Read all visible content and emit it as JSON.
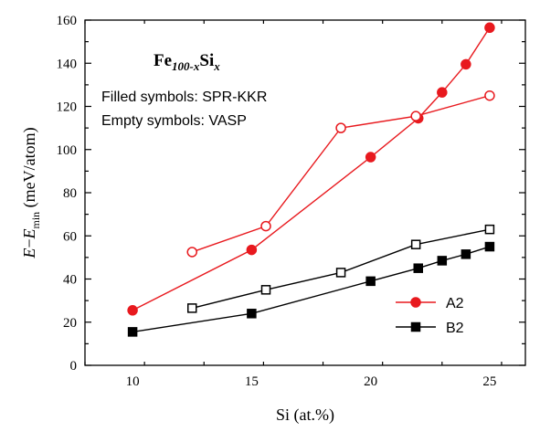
{
  "chart_data": {
    "type": "line",
    "xlabel": "Si (at.%)",
    "ylabel_main": "E",
    "ylabel_dash": "−",
    "ylabel_e": "E",
    "ylabel_sub": "min",
    "ylabel_unit": " (meV/atom)",
    "xlim": [
      8,
      26.5
    ],
    "ylim": [
      0,
      160
    ],
    "x_ticks": [
      10,
      15,
      20,
      25
    ],
    "y_ticks": [
      0,
      20,
      40,
      60,
      80,
      100,
      120,
      140,
      160
    ],
    "formula": {
      "base": "Fe",
      "sub": "100-x",
      "si": "Si",
      "x": "x"
    },
    "annotations": [
      "Filled symbols: SPR-KKR",
      "Empty symbols: VASP"
    ],
    "legend_position": "bottom-right",
    "series": [
      {
        "name": "A2",
        "color": "#e8191e",
        "marker": "circle",
        "fill": "filled",
        "in_legend": true,
        "points": [
          [
            10,
            25.5
          ],
          [
            15,
            53.5
          ],
          [
            20,
            96.5
          ],
          [
            22,
            114.5
          ],
          [
            23,
            126.5
          ],
          [
            24,
            139.5
          ],
          [
            25,
            156.5
          ]
        ]
      },
      {
        "name": "",
        "color": "#e8191e",
        "marker": "circle",
        "fill": "empty",
        "in_legend": false,
        "points": [
          [
            12.5,
            52.5
          ],
          [
            15.6,
            64.5
          ],
          [
            18.75,
            110
          ],
          [
            21.9,
            115.5
          ],
          [
            25,
            125
          ]
        ]
      },
      {
        "name": "B2",
        "color": "#000000",
        "marker": "square",
        "fill": "filled",
        "in_legend": true,
        "points": [
          [
            10,
            15.5
          ],
          [
            15,
            24
          ],
          [
            20,
            39
          ],
          [
            22,
            45
          ],
          [
            23,
            48.5
          ],
          [
            24,
            51.5
          ],
          [
            25,
            55
          ]
        ]
      },
      {
        "name": "",
        "color": "#000000",
        "marker": "square",
        "fill": "empty",
        "in_legend": false,
        "points": [
          [
            12.5,
            26.5
          ],
          [
            15.6,
            35
          ],
          [
            18.75,
            43
          ],
          [
            21.9,
            56
          ],
          [
            25,
            63
          ]
        ]
      }
    ]
  }
}
